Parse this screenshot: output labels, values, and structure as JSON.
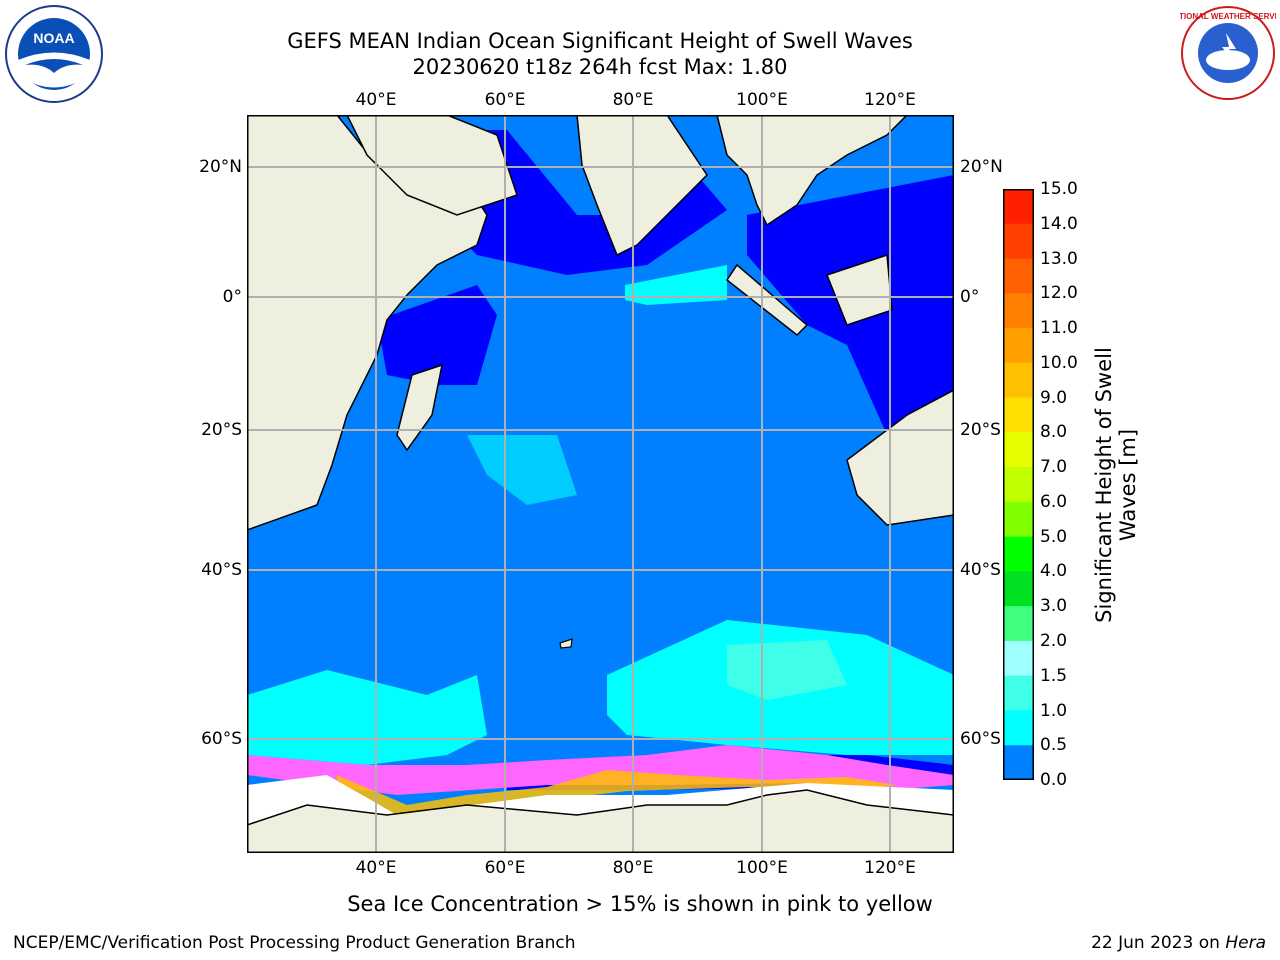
{
  "header": {
    "title_line1": "GEFS MEAN Indian Ocean Significant Height of Swell Waves",
    "title_line2": "20230620 t18z 264h fcst   Max: 1.80"
  },
  "map": {
    "lon_ticks_top": [
      "40°E",
      "60°E",
      "80°E",
      "100°E",
      "120°E"
    ],
    "lon_ticks_bottom": [
      "40°E",
      "60°E",
      "80°E",
      "100°E",
      "120°E"
    ],
    "lat_ticks_left": [
      "20°N",
      "0°",
      "20°S",
      "40°S",
      "60°S"
    ],
    "lat_ticks_right": [
      "20°N",
      "0°",
      "20°S",
      "40°S",
      "60°S"
    ],
    "colors": {
      "land": "#efefdf",
      "ice": "#ffffff",
      "ocean_0_0_5": "#0000ff",
      "ocean_0_5_1_0": "#0080ff",
      "ocean_1_0_1_5": "#00ffff",
      "ocean_1_5_2_0": "#40ffe8",
      "grid": "#b0b0b0",
      "coast": "#000000"
    }
  },
  "colorbar": {
    "label": "Significant Height of Swell Waves [m]",
    "ticks": [
      "15.0",
      "14.0",
      "13.0",
      "12.0",
      "11.0",
      "10.0",
      "9.0",
      "8.0",
      "7.0",
      "6.0",
      "5.0",
      "4.0",
      "3.0",
      "2.0",
      "1.5",
      "1.0",
      "0.5",
      "0.0"
    ],
    "colors": [
      "#ff0000",
      "#ff2000",
      "#ff4000",
      "#ff6000",
      "#ff8000",
      "#ffa000",
      "#ffc000",
      "#ffe000",
      "#e6ff00",
      "#c0ff00",
      "#80ff00",
      "#00ff00",
      "#00e020",
      "#40ff80",
      "#a0ffff",
      "#40ffe8",
      "#00ffff",
      "#0080ff",
      "#0000ff"
    ]
  },
  "note": "Sea Ice Concentration > 15% is shown in pink to yellow",
  "footer": {
    "left": "NCEP/EMC/Verification Post Processing Product Generation Branch",
    "date": "22 Jun 2023 on ",
    "machine": "Hera"
  },
  "logos": {
    "noaa_text": "NOAA",
    "nws_text": "NATIONAL WEATHER SERVICE"
  }
}
